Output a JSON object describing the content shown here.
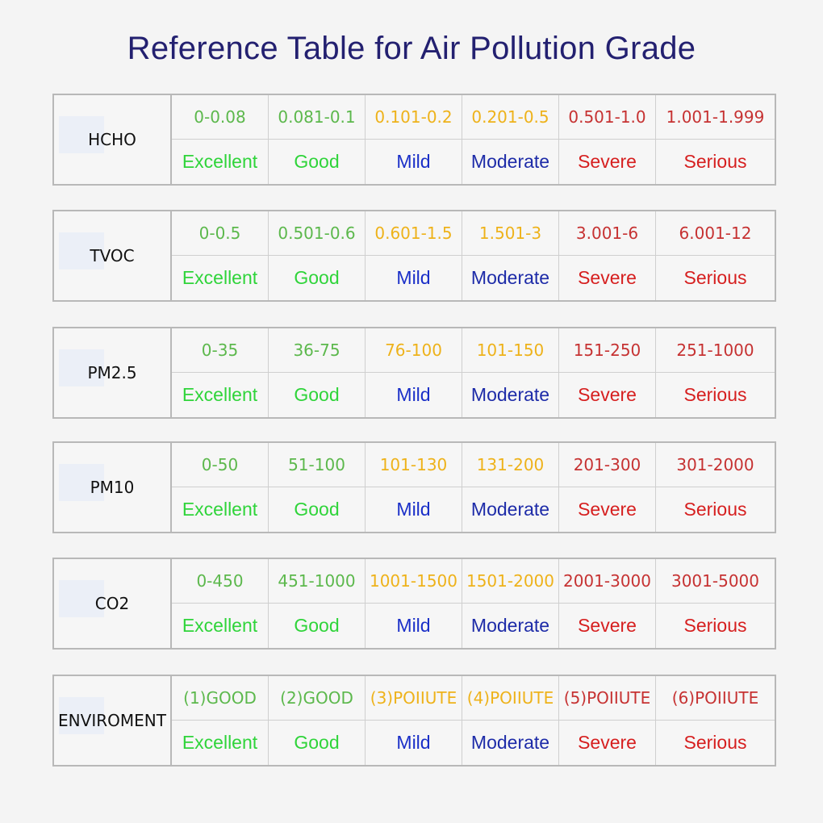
{
  "title": "Reference Table for Air Pollution Grade",
  "colors": {
    "range_green": "#5cb84c",
    "grade_green": "#2fd43a",
    "range_yellow": "#eeb21a",
    "grade_blue": "#1a2fc8",
    "range_red": "#c63232",
    "grade_red": "#d61f1f"
  },
  "grades": [
    "Excellent",
    "Good",
    "Mild",
    "Moderate",
    "Severe",
    "Serious"
  ],
  "tables": [
    {
      "name": "HCHO",
      "ranges": [
        "0-0.08",
        "0.081-0.1",
        "0.101-0.2",
        "0.201-0.5",
        "0.501-1.0",
        "1.001-1.999"
      ]
    },
    {
      "name": "TVOC",
      "ranges": [
        "0-0.5",
        "0.501-0.6",
        "0.601-1.5",
        "1.501-3",
        "3.001-6",
        "6.001-12"
      ]
    },
    {
      "name": "PM2.5",
      "ranges": [
        "0-35",
        "36-75",
        "76-100",
        "101-150",
        "151-250",
        "251-1000"
      ]
    },
    {
      "name": "PM10",
      "ranges": [
        "0-50",
        "51-100",
        "101-130",
        "131-200",
        "201-300",
        "301-2000"
      ]
    },
    {
      "name": "CO2",
      "ranges": [
        "0-450",
        "451-1000",
        "1001-1500",
        "1501-2000",
        "2001-3000",
        "3001-5000"
      ]
    },
    {
      "name": "ENVIROMENT",
      "ranges": [
        "(1)GOOD",
        "(2)GOOD",
        "(3)POIIUTE",
        "(4)POIIUTE",
        "(5)POIIUTE",
        "(6)POIIUTE"
      ]
    }
  ]
}
